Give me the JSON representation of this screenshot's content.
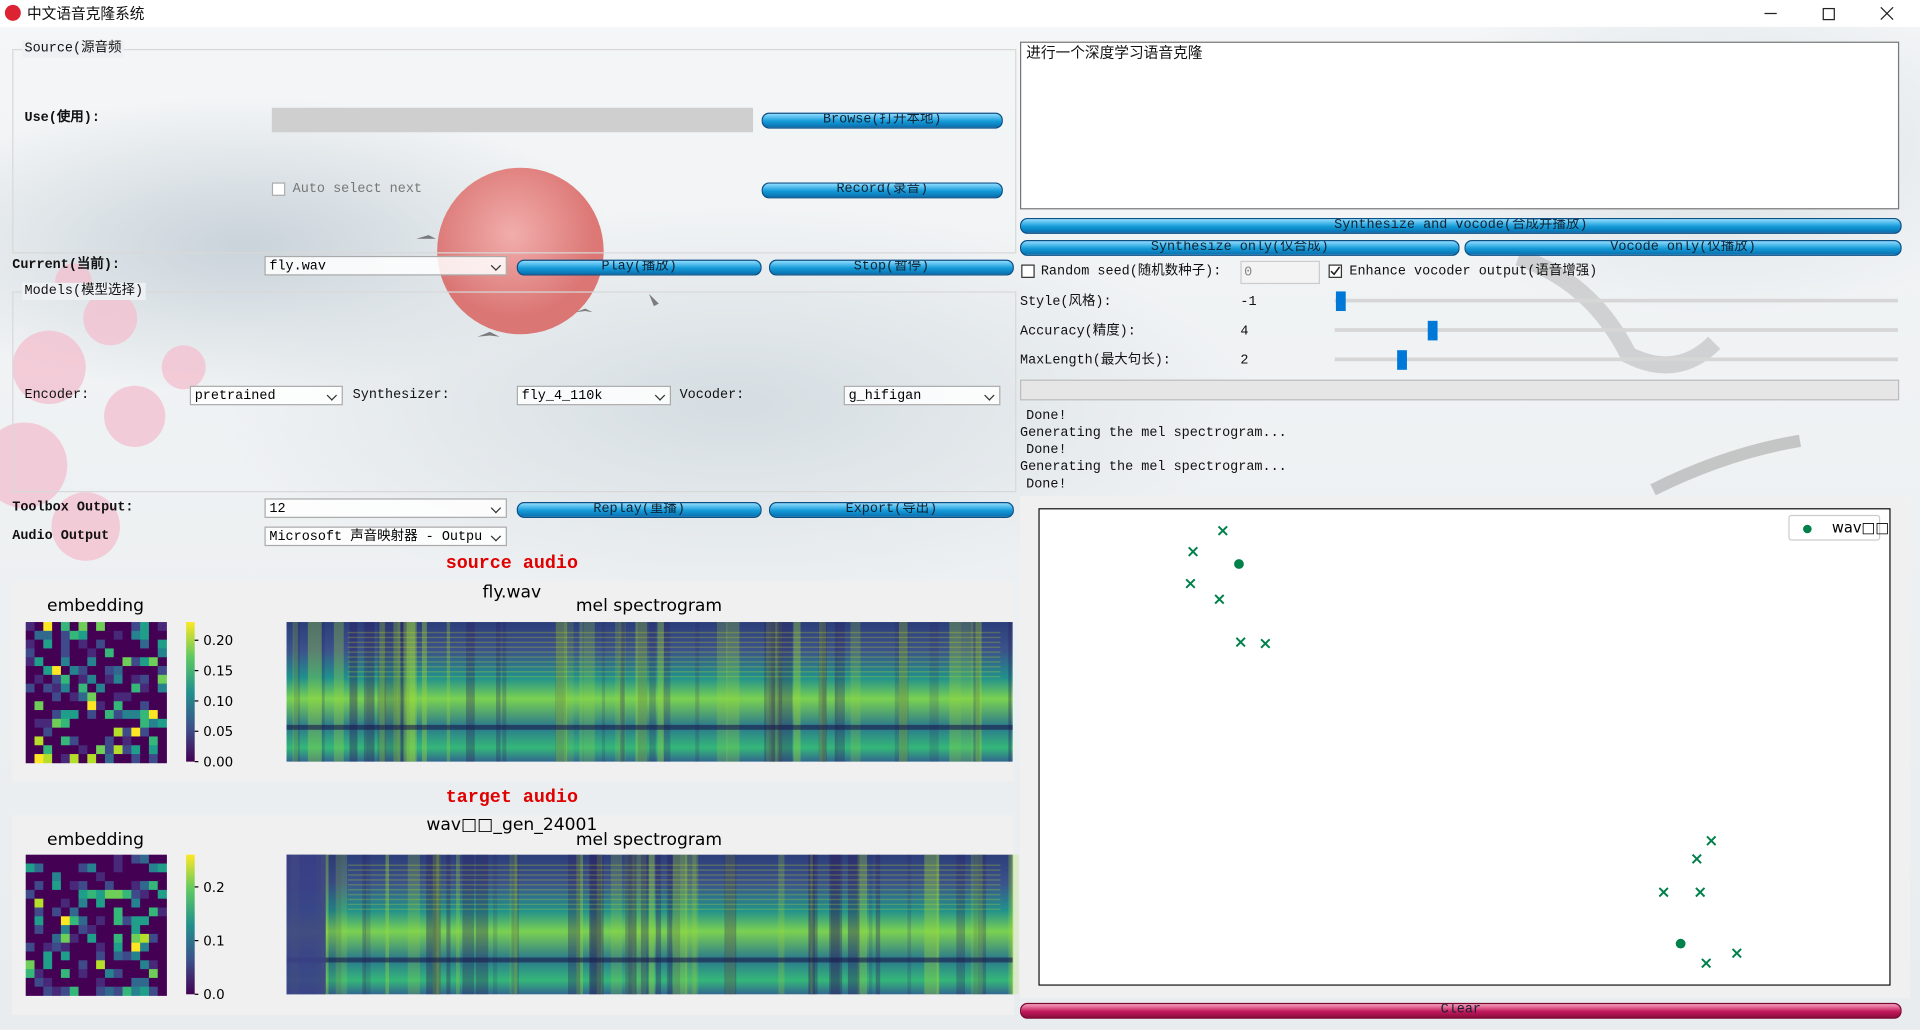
{
  "window": {
    "title": "中文语音克隆系统"
  },
  "source": {
    "group": "Source(源音频",
    "use_label": "Use(使用):",
    "browse": "Browse(打开本地)",
    "auto_select": "Auto select next",
    "record": "Record(录音)"
  },
  "current": {
    "label": "Current(当前):",
    "file": "fly.wav",
    "play": "Play(播放)",
    "stop": "Stop(暂停)"
  },
  "models": {
    "group": "Models(模型选择)",
    "encoder_label": "Encoder:",
    "encoder": "pretrained",
    "synthesizer_label": "Synthesizer:",
    "synthesizer": "fly_4_110k",
    "vocoder_label": "Vocoder:",
    "vocoder": "g_hifigan"
  },
  "output": {
    "toolbox_label": "Toolbox Output:",
    "toolbox": 12,
    "replay": "Replay(重播)",
    "export": "Export(导出)",
    "audio_label": "Audio Output",
    "audio": "Microsoft 声音映射器 - Outpu"
  },
  "plots": [
    {
      "heading": "source audio",
      "embedding_title": "embedding",
      "file": "fly.wav",
      "mel_title": "mel spectrogram",
      "colorbar": {
        "ylim": [
          0,
          0.23
        ],
        "ticks": [
          {
            "value": 0.2,
            "label": "0.20"
          },
          {
            "value": 0.15,
            "label": "0.15"
          },
          {
            "value": 0.1,
            "label": "0.10"
          },
          {
            "value": 0.05,
            "label": "0.05"
          },
          {
            "value": 0,
            "label": "0.00"
          }
        ]
      }
    },
    {
      "heading": "target audio",
      "embedding_title": "embedding",
      "file": "wav□□_gen_24001",
      "mel_title": "mel spectrogram",
      "colorbar": {
        "ylim": [
          0,
          0.26
        ],
        "ticks": [
          0.2,
          0.1,
          {
            "value": 0,
            "label": "0.0"
          }
        ]
      }
    }
  ],
  "synthesis": {
    "text": "进行一个深度学习语音克隆",
    "synth_vocode": "Synthesize and vocode(合成并播放)",
    "synth_only": "Synthesize only(仅合成)",
    "vocode_only": "Vocode only(仅播放)",
    "random_seed_label": "Random seed(随机数种子):",
    "seed": 0,
    "enhance_label": "Enhance vocoder output(语音增强)",
    "style_label": "Style(风格):",
    "style": -1,
    "accuracy_label": "Accuracy(精度):",
    "accuracy": 4,
    "maxlength_label": "MaxLength(最大句长):",
    "maxlength": 2
  },
  "log": [
    "Done!",
    "Generating the mel spectrogram...",
    "Done!",
    "Generating the mel spectrogram...",
    "Done!"
  ],
  "projection": {
    "legend": "wav□□",
    "xlim": [
      0,
      100
    ],
    "ylim": [
      0,
      100
    ],
    "color": "#00804a",
    "crosses": {
      "x": [
        21.6,
        18.1,
        17.8,
        21.2,
        23.7,
        26.6,
        79.0,
        77.3,
        73.4,
        77.7,
        82.0,
        78.4
      ],
      "y": [
        95.4,
        91.0,
        84.3,
        81.0,
        72.0,
        71.7,
        30.3,
        26.5,
        19.5,
        19.5,
        6.7,
        4.6
      ]
    },
    "dots": {
      "x": [
        23.5,
        75.4
      ],
      "y": [
        88.4,
        8.7
      ]
    }
  },
  "clear": "Clear"
}
